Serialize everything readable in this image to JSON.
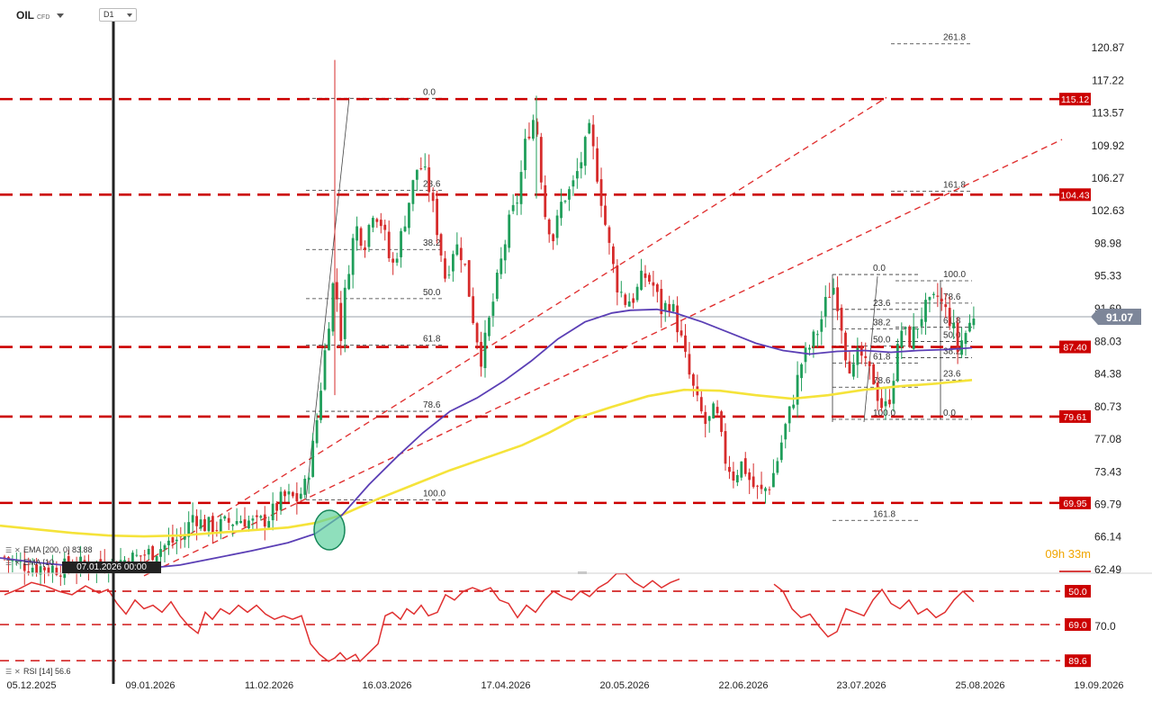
{
  "header": {
    "symbol": "OIL",
    "symbol_suffix": "CFD",
    "timeframe": "D1"
  },
  "legend": {
    "ema200": "EMA [200, 0] 83.88",
    "ema100": "EMA [10",
    "rsi": "RSI [14] 56.6"
  },
  "countdown": "09h 33m",
  "cursor_date": "07.01.2026 00:00",
  "colors": {
    "bull": "#1f9e5a",
    "bear": "#d62b2b",
    "level": "#cc0000",
    "ema_short": "#5b3fb5",
    "ema_long": "#f5e33a",
    "rsi": "#e03030",
    "current_price": "#7d8699"
  },
  "chart_data": [
    {
      "type": "candlestick",
      "ylim": [
        62.49,
        124.5
      ],
      "y_ticks": [
        "120.87",
        "117.22",
        "113.57",
        "109.92",
        "106.27",
        "102.63",
        "98.98",
        "95.33",
        "91.69",
        "88.03",
        "84.38",
        "80.73",
        "77.08",
        "73.43",
        "69.79",
        "66.14",
        "62.49"
      ],
      "x_ticks": [
        "05.12.2025",
        "09.01.2026",
        "11.02.2026",
        "16.03.2026",
        "17.04.2026",
        "20.05.2026",
        "22.06.2026",
        "23.07.2026",
        "25.08.2026",
        "19.09.2026"
      ],
      "current_price": "91.07",
      "levels": [
        {
          "value": 115.12,
          "label": "115.12"
        },
        {
          "value": 104.43,
          "label": "104.43"
        },
        {
          "value": 87.4,
          "label": "87.40"
        },
        {
          "value": 79.61,
          "label": "79.61"
        },
        {
          "value": 69.95,
          "label": "69.95"
        }
      ],
      "fibonacci": [
        {
          "label": "0.0",
          "value": 115.2
        },
        {
          "label": "23.6",
          "value": 104.9
        },
        {
          "label": "38.2",
          "value": 98.3
        },
        {
          "label": "50.0",
          "value": 92.8
        },
        {
          "label": "61.8",
          "value": 87.6
        },
        {
          "label": "78.6",
          "value": 80.2
        },
        {
          "label": "100.0",
          "value": 70.3
        },
        {
          "label": "261.8",
          "value": 121.3
        },
        {
          "label": "161.8",
          "value": 104.8
        },
        {
          "label": "0.0",
          "value": 95.5
        },
        {
          "label": "23.6",
          "value": 91.6
        },
        {
          "label": "38.2",
          "value": 89.4
        },
        {
          "label": "50.0",
          "value": 87.5
        },
        {
          "label": "61.8",
          "value": 85.6
        },
        {
          "label": "78.6",
          "value": 82.9
        },
        {
          "label": "100.0",
          "value": 79.3
        },
        {
          "label": "161.8",
          "value": 68.0
        },
        {
          "label": "100.0",
          "value": 94.8
        },
        {
          "label": "78.6",
          "value": 92.3
        },
        {
          "label": "61.8",
          "value": 89.6
        },
        {
          "label": "50.0",
          "value": 88.0
        },
        {
          "label": "38.2",
          "value": 86.2
        },
        {
          "label": "23.6",
          "value": 83.7
        },
        {
          "label": "0.0",
          "value": 79.3
        }
      ],
      "series": [
        {
          "name": "EMA [200, 0] 83.88",
          "role": "ema_long",
          "values": [
            [
              0,
              67.4
            ],
            [
              40,
              67.0
            ],
            [
              80,
              66.6
            ],
            [
              120,
              66.3
            ],
            [
              160,
              66.2
            ],
            [
              200,
              66.3
            ],
            [
              240,
              66.6
            ],
            [
              280,
              66.9
            ],
            [
              320,
              67.2
            ],
            [
              350,
              67.7
            ],
            [
              380,
              68.6
            ],
            [
              420,
              70.4
            ],
            [
              460,
              72.0
            ],
            [
              500,
              73.6
            ],
            [
              540,
              75.0
            ],
            [
              580,
              76.4
            ],
            [
              610,
              77.8
            ],
            [
              640,
              79.4
            ],
            [
              680,
              80.7
            ],
            [
              720,
              81.9
            ],
            [
              760,
              82.6
            ],
            [
              800,
              82.5
            ],
            [
              840,
              82.0
            ],
            [
              880,
              81.6
            ],
            [
              920,
              82.0
            ],
            [
              960,
              82.6
            ],
            [
              1000,
              83.0
            ],
            [
              1040,
              83.3
            ],
            [
              1080,
              83.7
            ]
          ]
        },
        {
          "name": "EMA [10",
          "role": "ema_short",
          "values": [
            [
              0,
              63.8
            ],
            [
              40,
              63.3
            ],
            [
              80,
              62.9
            ],
            [
              120,
              62.6
            ],
            [
              160,
              62.6
            ],
            [
              200,
              63.0
            ],
            [
              240,
              63.8
            ],
            [
              280,
              64.6
            ],
            [
              320,
              65.5
            ],
            [
              350,
              66.5
            ],
            [
              380,
              68.6
            ],
            [
              410,
              72.0
            ],
            [
              440,
              75.0
            ],
            [
              470,
              77.8
            ],
            [
              500,
              80.2
            ],
            [
              530,
              81.7
            ],
            [
              560,
              83.6
            ],
            [
              590,
              85.8
            ],
            [
              620,
              88.3
            ],
            [
              650,
              90.2
            ],
            [
              680,
              91.2
            ],
            [
              700,
              91.5
            ],
            [
              730,
              91.6
            ],
            [
              750,
              91.2
            ],
            [
              780,
              90.2
            ],
            [
              810,
              89.0
            ],
            [
              840,
              87.8
            ],
            [
              870,
              87.0
            ],
            [
              900,
              86.6
            ],
            [
              930,
              86.9
            ],
            [
              960,
              87.0
            ],
            [
              990,
              86.8
            ],
            [
              1020,
              87.0
            ],
            [
              1050,
              87.1
            ],
            [
              1080,
              87.3
            ]
          ]
        }
      ]
    },
    {
      "type": "line",
      "name": "RSI [14] 56.6",
      "ylim": [
        30,
        100
      ],
      "y_ticks": [
        "70.0"
      ],
      "levels": [
        {
          "value": 89.6,
          "label": "89.6"
        },
        {
          "value": 69.0,
          "label": "69.0"
        },
        {
          "value": 50.0,
          "label": "50.0"
        }
      ]
    }
  ]
}
